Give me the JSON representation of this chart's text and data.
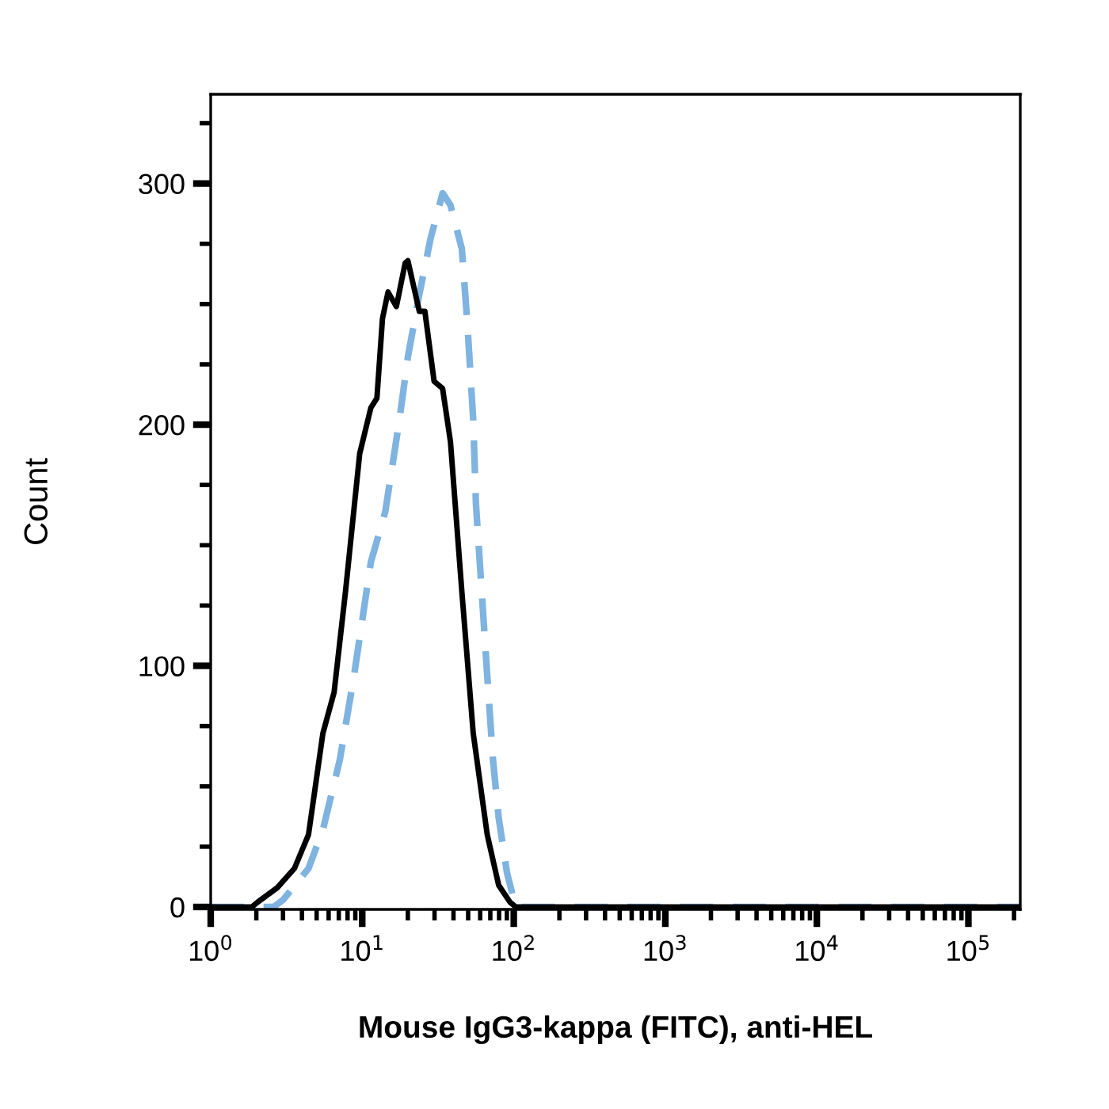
{
  "chart_data": {
    "type": "line",
    "xlabel": "Mouse IgG3-kappa (FITC), anti-HEL",
    "ylabel": "Count",
    "log": "x",
    "xlim": [
      1,
      220000
    ],
    "ylim": [
      -1,
      337
    ],
    "xticks": [
      {
        "value": 1,
        "label": "10$^{0}$"
      },
      {
        "value": 2,
        "label": null
      },
      {
        "value": 3,
        "label": null
      },
      {
        "value": 4,
        "label": null
      },
      {
        "value": 5,
        "label": null
      },
      {
        "value": 6,
        "label": null
      },
      {
        "value": 7,
        "label": null
      },
      {
        "value": 8,
        "label": null
      },
      {
        "value": 9,
        "label": null
      },
      {
        "value": 10,
        "label": "10$^{1}$"
      },
      {
        "value": 20,
        "label": null
      },
      {
        "value": 30,
        "label": null
      },
      {
        "value": 40,
        "label": null
      },
      {
        "value": 50,
        "label": null
      },
      {
        "value": 60,
        "label": null
      },
      {
        "value": 70,
        "label": null
      },
      {
        "value": 80,
        "label": null
      },
      {
        "value": 90,
        "label": null
      },
      {
        "value": 100,
        "label": "10$^{2}$"
      },
      {
        "value": 200,
        "label": null
      },
      {
        "value": 300,
        "label": null
      },
      {
        "value": 400,
        "label": null
      },
      {
        "value": 500,
        "label": null
      },
      {
        "value": 600,
        "label": null
      },
      {
        "value": 700,
        "label": null
      },
      {
        "value": 800,
        "label": null
      },
      {
        "value": 900,
        "label": null
      },
      {
        "value": 1000,
        "label": "10$^{3}$"
      },
      {
        "value": 2000,
        "label": null
      },
      {
        "value": 3000,
        "label": null
      },
      {
        "value": 4000,
        "label": null
      },
      {
        "value": 5000,
        "label": null
      },
      {
        "value": 6000,
        "label": null
      },
      {
        "value": 7000,
        "label": null
      },
      {
        "value": 8000,
        "label": null
      },
      {
        "value": 9000,
        "label": null
      },
      {
        "value": 10000,
        "label": "10$^{4}$"
      },
      {
        "value": 20000,
        "label": null
      },
      {
        "value": 30000,
        "label": null
      },
      {
        "value": 40000,
        "label": null
      },
      {
        "value": 50000,
        "label": null
      },
      {
        "value": 60000,
        "label": null
      },
      {
        "value": 70000,
        "label": null
      },
      {
        "value": 80000,
        "label": null
      },
      {
        "value": 90000,
        "label": null
      },
      {
        "value": 100000,
        "label": "10$^{5}$"
      },
      {
        "value": 200000,
        "label": null
      }
    ],
    "yticks": [
      0,
      {
        "value": 25,
        "label": null
      },
      {
        "value": 50,
        "label": null
      },
      {
        "value": 75,
        "label": null
      },
      100,
      {
        "value": 125,
        "label": null
      },
      {
        "value": 150,
        "label": null
      },
      {
        "value": 175,
        "label": null
      },
      200,
      {
        "value": 225,
        "label": null
      },
      {
        "value": 250,
        "label": null
      },
      {
        "value": 275,
        "label": null
      },
      300,
      {
        "value": 325,
        "label": null
      }
    ],
    "grid": false,
    "legend": false,
    "series": [
      {
        "color": "#7fb3e0",
        "line_style": "dashed",
        "x": [
          1,
          2.6,
          3.01,
          4.42,
          5.5,
          7.11,
          8.83,
          11.4,
          14.2,
          17.6,
          20.0,
          23.8,
          28.2,
          33.9,
          38.2,
          45.4,
          49.4,
          54.0,
          56.3,
          61.4,
          66.8,
          72.9,
          79.5,
          90.3,
          103,
          220000
        ],
        "values": [
          0,
          0,
          3,
          16,
          32,
          61,
          96,
          143,
          164,
          202,
          228,
          254,
          277,
          296,
          291,
          273,
          242,
          202,
          167,
          131,
          96,
          61,
          37,
          14,
          0,
          0
        ]
      },
      {
        "color": "#000000",
        "line_style": "solid",
        "x": [
          1,
          1.87,
          2.04,
          2.75,
          3.57,
          4.42,
          5.5,
          6.52,
          7.76,
          9.62,
          11.4,
          12.5,
          13.6,
          14.8,
          16.8,
          19.2,
          20.0,
          23.8,
          25.9,
          29.8,
          33.9,
          38.2,
          45.4,
          54.0,
          66.8,
          79.5,
          94.4,
          103,
          220000
        ],
        "values": [
          0,
          0,
          2,
          8,
          16,
          30,
          72,
          89,
          131,
          188,
          207,
          211,
          244,
          255,
          249,
          267,
          268,
          247,
          247,
          218,
          215,
          193,
          131,
          72,
          30,
          9,
          2,
          0,
          0
        ]
      }
    ]
  }
}
